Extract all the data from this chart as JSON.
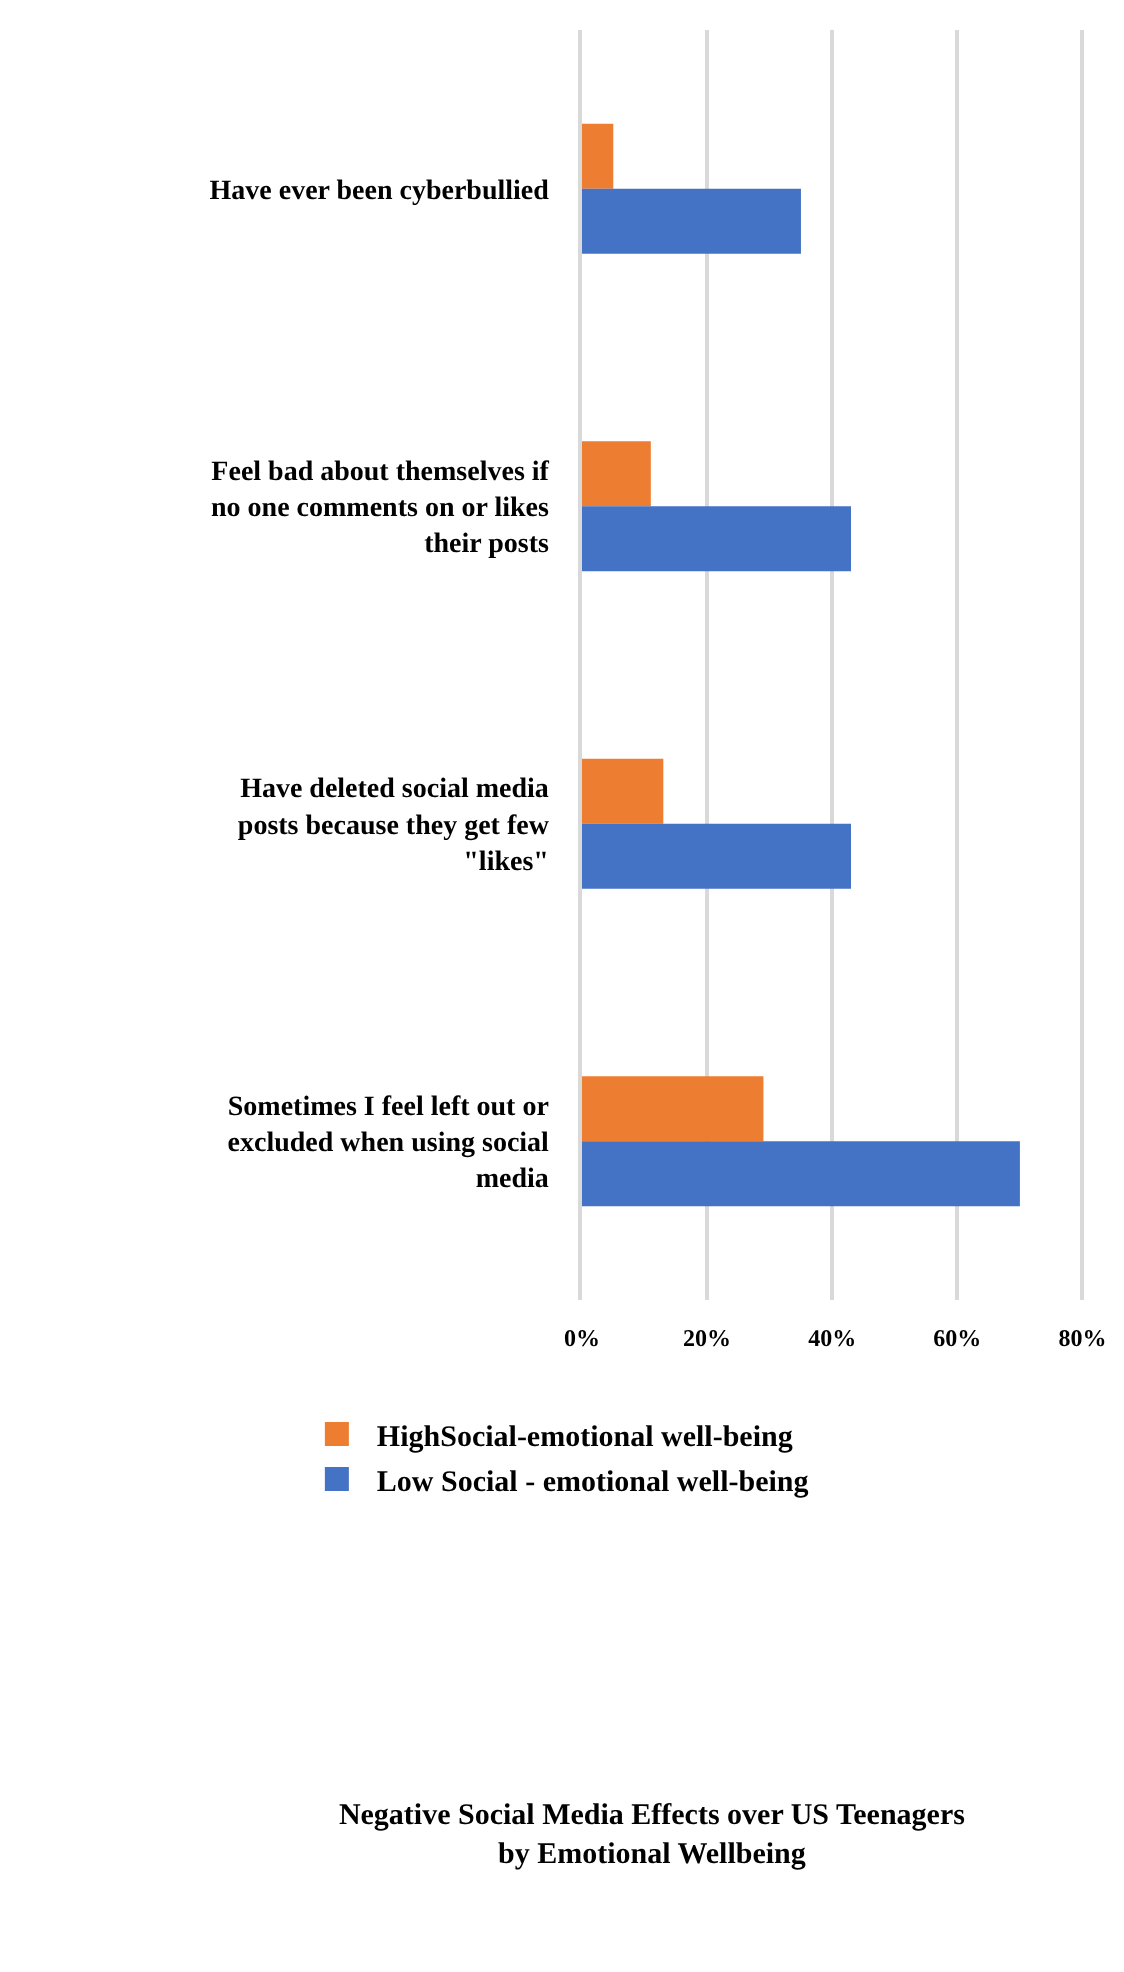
{
  "chart_data": {
    "type": "bar",
    "orientation": "horizontal",
    "title": "Negative Social Media Effects over US Teenagers by Emotional Wellbeing",
    "categories": [
      "Have ever been cyberbullied",
      "Feel bad about themselves if no one comments on or likes their posts",
      "Have deleted social media posts because they get few \"likes\"",
      "Sometimes I feel left out or excluded when using social media"
    ],
    "series": [
      {
        "name": "HighSocial-emotional well-being",
        "color": "#ed7d31",
        "values": [
          5,
          11,
          13,
          29
        ]
      },
      {
        "name": "Low Social - emotional well-being",
        "color": "#4472c4",
        "values": [
          35,
          43,
          43,
          70
        ]
      }
    ],
    "xlim": [
      0,
      86
    ],
    "xticks": [
      {
        "value": 0,
        "label": "0%"
      },
      {
        "value": 20,
        "label": "20%"
      },
      {
        "value": 40,
        "label": "40%"
      },
      {
        "value": 60,
        "label": "60%"
      },
      {
        "value": 80,
        "label": "80%"
      }
    ],
    "grid": "x",
    "legend": "bottom"
  }
}
